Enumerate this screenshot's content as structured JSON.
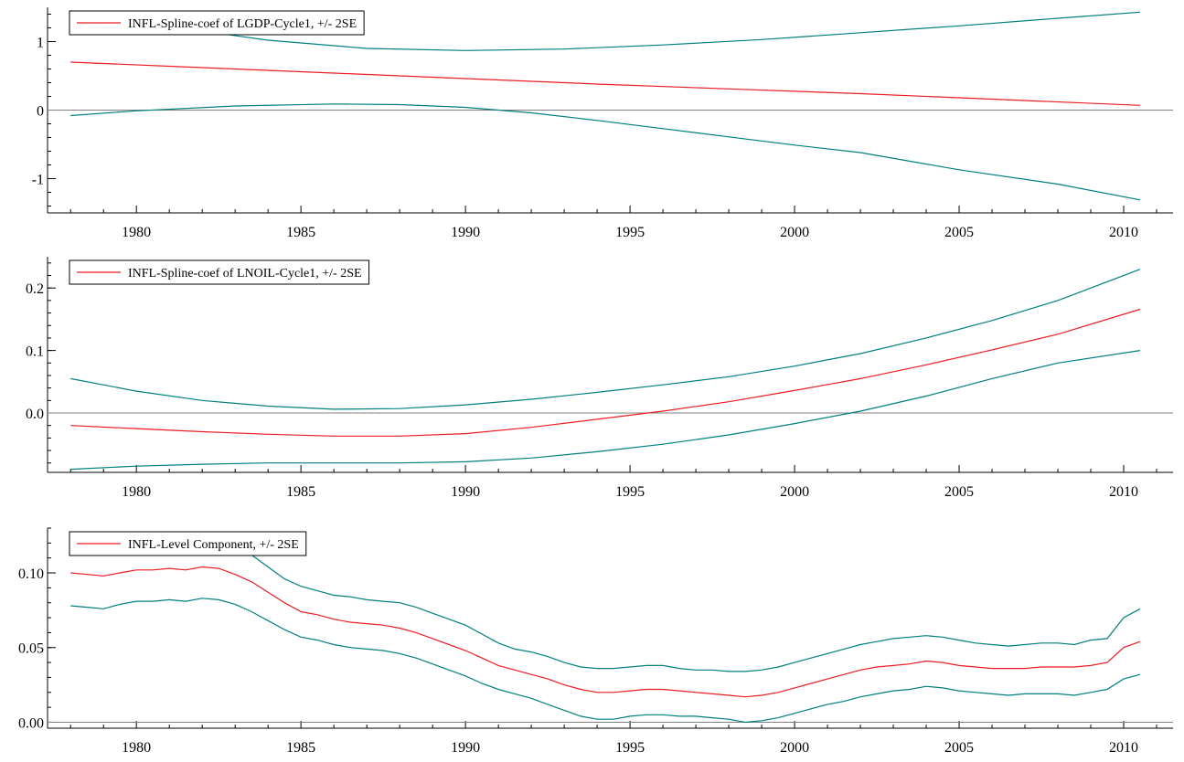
{
  "colors": {
    "estimate": "#ee1c24",
    "band": "#007f7f",
    "zero": "#808080",
    "axis": "#000000"
  },
  "chart_data": [
    {
      "type": "line",
      "legend": "INFL-Spline-coef of LGDP-Cycle1, +/- 2SE",
      "legend_position": "top-left",
      "xlim": [
        1977.3,
        2011.5
      ],
      "ylim": [
        -1.5,
        1.5
      ],
      "xticks": [
        "1980",
        "1985",
        "1990",
        "1995",
        "2000",
        "2005",
        "2010"
      ],
      "yticks": [
        {
          "value": 1,
          "label": "1"
        },
        {
          "value": 0,
          "label": "0"
        },
        {
          "value": -1,
          "label": "-1"
        }
      ],
      "zero_line": true,
      "series": [
        {
          "role": "upper",
          "x": [
            1978.0,
            1981,
            1984,
            1987,
            1990,
            1993,
            1996,
            1999,
            2002,
            2005,
            2008,
            2010.5
          ],
          "y": [
            1.45,
            1.22,
            1.02,
            0.9,
            0.87,
            0.89,
            0.95,
            1.03,
            1.13,
            1.23,
            1.34,
            1.43
          ]
        },
        {
          "role": "estimate",
          "x": [
            1978.0,
            1982,
            1986,
            1990,
            1994,
            1998,
            2002,
            2006,
            2010.5
          ],
          "y": [
            0.7,
            0.62,
            0.54,
            0.46,
            0.38,
            0.31,
            0.24,
            0.16,
            0.07
          ]
        },
        {
          "role": "lower",
          "x": [
            1978.0,
            1980,
            1983,
            1986,
            1988,
            1990,
            1992,
            1994,
            1996,
            1998,
            2000,
            2002,
            2005,
            2008,
            2010.5
          ],
          "y": [
            -0.08,
            -0.01,
            0.06,
            0.09,
            0.08,
            0.04,
            -0.04,
            -0.15,
            -0.27,
            -0.39,
            -0.51,
            -0.62,
            -0.87,
            -1.08,
            -1.31
          ]
        }
      ]
    },
    {
      "type": "line",
      "legend": "INFL-Spline-coef of LNOIL-Cycle1, +/- 2SE",
      "legend_position": "top-left",
      "xlim": [
        1977.3,
        2011.5
      ],
      "ylim": [
        -0.095,
        0.25
      ],
      "xticks": [
        "1980",
        "1985",
        "1990",
        "1995",
        "2000",
        "2005",
        "2010"
      ],
      "yticks": [
        {
          "value": 0.2,
          "label": "0.2"
        },
        {
          "value": 0.1,
          "label": "0.1"
        },
        {
          "value": 0.0,
          "label": "0.0"
        }
      ],
      "zero_line": true,
      "series": [
        {
          "role": "upper",
          "x": [
            1978.0,
            1980,
            1982,
            1984,
            1986,
            1988,
            1990,
            1992,
            1994,
            1996,
            1998,
            2000,
            2002,
            2004,
            2006,
            2008,
            2010.5
          ],
          "y": [
            0.055,
            0.035,
            0.02,
            0.011,
            0.006,
            0.007,
            0.013,
            0.022,
            0.033,
            0.045,
            0.058,
            0.075,
            0.095,
            0.12,
            0.148,
            0.18,
            0.23
          ]
        },
        {
          "role": "estimate",
          "x": [
            1978.0,
            1980,
            1982,
            1984,
            1986,
            1988,
            1990,
            1992,
            1994,
            1996,
            1998,
            2000,
            2002,
            2004,
            2006,
            2008,
            2010.5
          ],
          "y": [
            -0.02,
            -0.025,
            -0.03,
            -0.034,
            -0.037,
            -0.037,
            -0.033,
            -0.023,
            -0.01,
            0.003,
            0.018,
            0.036,
            0.055,
            0.077,
            0.101,
            0.126,
            0.166
          ]
        },
        {
          "role": "lower",
          "x": [
            1978.0,
            1980,
            1982,
            1984,
            1986,
            1988,
            1990,
            1992,
            1994,
            1996,
            1998,
            2000,
            2002,
            2004,
            2006,
            2008,
            2010.5
          ],
          "y": [
            -0.09,
            -0.085,
            -0.082,
            -0.08,
            -0.08,
            -0.08,
            -0.078,
            -0.072,
            -0.062,
            -0.05,
            -0.035,
            -0.017,
            0.003,
            0.027,
            0.055,
            0.08,
            0.1
          ]
        }
      ]
    },
    {
      "type": "line",
      "legend": "INFL-Level Component, +/- 2SE",
      "legend_position": "top-left",
      "xlim": [
        1977.3,
        2011.5
      ],
      "ylim": [
        -0.004,
        0.13
      ],
      "xticks": [
        "1980",
        "1985",
        "1990",
        "1995",
        "2000",
        "2005",
        "2010"
      ],
      "yticks": [
        {
          "value": 0.1,
          "label": "0.10"
        },
        {
          "value": 0.05,
          "label": "0.05"
        },
        {
          "value": 0.0,
          "label": "0.00"
        }
      ],
      "zero_line": true,
      "series": [
        {
          "role": "upper",
          "x": [
            1978.0,
            1978.5,
            1979,
            1979.5,
            1980,
            1980.5,
            1981,
            1981.5,
            1982,
            1982.5,
            1983,
            1983.5,
            1984,
            1984.5,
            1985,
            1985.5,
            1986,
            1986.5,
            1987,
            1987.5,
            1988,
            1988.5,
            1989,
            1989.5,
            1990,
            1990.5,
            1991,
            1991.5,
            1992,
            1992.5,
            1993,
            1993.5,
            1994,
            1994.5,
            1995,
            1995.5,
            1996,
            1996.5,
            1997,
            1997.5,
            1998,
            1998.5,
            1999,
            1999.5,
            2000,
            2000.5,
            2001,
            2001.5,
            2002,
            2002.5,
            2003,
            2003.5,
            2004,
            2004.5,
            2005,
            2005.5,
            2006,
            2006.5,
            2007,
            2007.5,
            2008,
            2008.5,
            2009,
            2009.5,
            2010,
            2010.5
          ],
          "y": [
            0.123,
            0.121,
            0.12,
            0.121,
            0.123,
            0.124,
            0.123,
            0.123,
            0.124,
            0.122,
            0.118,
            0.112,
            0.104,
            0.096,
            0.091,
            0.088,
            0.085,
            0.084,
            0.082,
            0.081,
            0.08,
            0.077,
            0.073,
            0.069,
            0.065,
            0.059,
            0.053,
            0.049,
            0.047,
            0.044,
            0.04,
            0.037,
            0.036,
            0.036,
            0.037,
            0.038,
            0.038,
            0.036,
            0.035,
            0.035,
            0.034,
            0.034,
            0.035,
            0.037,
            0.04,
            0.043,
            0.046,
            0.049,
            0.052,
            0.054,
            0.056,
            0.057,
            0.058,
            0.057,
            0.055,
            0.053,
            0.052,
            0.051,
            0.052,
            0.053,
            0.053,
            0.052,
            0.055,
            0.056,
            0.07,
            0.076
          ]
        },
        {
          "role": "estimate",
          "x": [
            1978.0,
            1978.5,
            1979,
            1979.5,
            1980,
            1980.5,
            1981,
            1981.5,
            1982,
            1982.5,
            1983,
            1983.5,
            1984,
            1984.5,
            1985,
            1985.5,
            1986,
            1986.5,
            1987,
            1987.5,
            1988,
            1988.5,
            1989,
            1989.5,
            1990,
            1990.5,
            1991,
            1991.5,
            1992,
            1992.5,
            1993,
            1993.5,
            1994,
            1994.5,
            1995,
            1995.5,
            1996,
            1996.5,
            1997,
            1997.5,
            1998,
            1998.5,
            1999,
            1999.5,
            2000,
            2000.5,
            2001,
            2001.5,
            2002,
            2002.5,
            2003,
            2003.5,
            2004,
            2004.5,
            2005,
            2005.5,
            2006,
            2006.5,
            2007,
            2007.5,
            2008,
            2008.5,
            2009,
            2009.5,
            2010,
            2010.5
          ],
          "y": [
            0.1,
            0.099,
            0.098,
            0.1,
            0.102,
            0.102,
            0.103,
            0.102,
            0.104,
            0.103,
            0.099,
            0.094,
            0.087,
            0.08,
            0.074,
            0.072,
            0.069,
            0.067,
            0.066,
            0.065,
            0.063,
            0.06,
            0.056,
            0.052,
            0.048,
            0.043,
            0.038,
            0.035,
            0.032,
            0.029,
            0.025,
            0.022,
            0.02,
            0.02,
            0.021,
            0.022,
            0.022,
            0.021,
            0.02,
            0.019,
            0.018,
            0.017,
            0.018,
            0.02,
            0.023,
            0.026,
            0.029,
            0.032,
            0.035,
            0.037,
            0.038,
            0.039,
            0.041,
            0.04,
            0.038,
            0.037,
            0.036,
            0.036,
            0.036,
            0.037,
            0.037,
            0.037,
            0.038,
            0.04,
            0.05,
            0.054
          ]
        },
        {
          "role": "lower",
          "x": [
            1978.0,
            1978.5,
            1979,
            1979.5,
            1980,
            1980.5,
            1981,
            1981.5,
            1982,
            1982.5,
            1983,
            1983.5,
            1984,
            1984.5,
            1985,
            1985.5,
            1986,
            1986.5,
            1987,
            1987.5,
            1988,
            1988.5,
            1989,
            1989.5,
            1990,
            1990.5,
            1991,
            1991.5,
            1992,
            1992.5,
            1993,
            1993.5,
            1994,
            1994.5,
            1995,
            1995.5,
            1996,
            1996.5,
            1997,
            1997.5,
            1998,
            1998.5,
            1999,
            1999.5,
            2000,
            2000.5,
            2001,
            2001.5,
            2002,
            2002.5,
            2003,
            2003.5,
            2004,
            2004.5,
            2005,
            2005.5,
            2006,
            2006.5,
            2007,
            2007.5,
            2008,
            2008.5,
            2009,
            2009.5,
            2010,
            2010.5
          ],
          "y": [
            0.078,
            0.077,
            0.076,
            0.079,
            0.081,
            0.081,
            0.082,
            0.081,
            0.083,
            0.082,
            0.079,
            0.074,
            0.068,
            0.062,
            0.057,
            0.055,
            0.052,
            0.05,
            0.049,
            0.048,
            0.046,
            0.043,
            0.039,
            0.035,
            0.031,
            0.026,
            0.022,
            0.019,
            0.016,
            0.012,
            0.008,
            0.004,
            0.002,
            0.002,
            0.004,
            0.005,
            0.005,
            0.004,
            0.004,
            0.003,
            0.002,
            0.0,
            0.001,
            0.003,
            0.006,
            0.009,
            0.012,
            0.014,
            0.017,
            0.019,
            0.021,
            0.022,
            0.024,
            0.023,
            0.021,
            0.02,
            0.019,
            0.018,
            0.019,
            0.019,
            0.019,
            0.018,
            0.02,
            0.022,
            0.029,
            0.032
          ]
        }
      ]
    }
  ]
}
